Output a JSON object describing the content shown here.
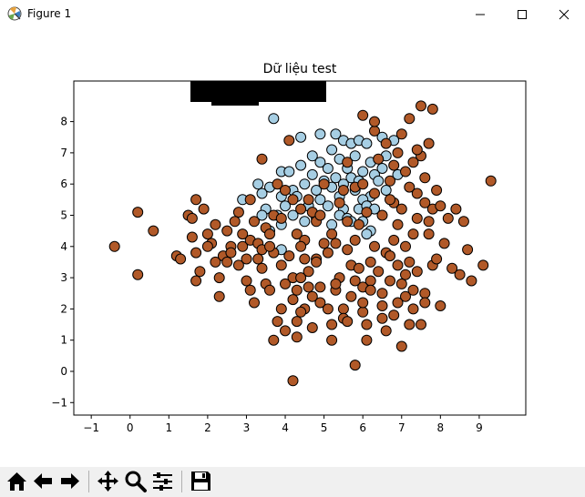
{
  "window": {
    "title": "Figure 1",
    "controls": [
      "minimize",
      "maximize",
      "close"
    ]
  },
  "toolbar": {
    "buttons": [
      "home-icon",
      "back-icon",
      "forward-icon",
      "pan-icon",
      "zoom-icon",
      "configure-subplots-icon",
      "save-icon"
    ]
  },
  "chart_data": {
    "type": "scatter",
    "title": "Dữ liệu test",
    "xlabel": "",
    "ylabel": "",
    "xlim": [
      -1.45,
      10.2
    ],
    "ylim": [
      -1.4,
      9.3
    ],
    "xticks": [
      -1,
      0,
      1,
      2,
      3,
      4,
      5,
      6,
      7,
      8,
      9
    ],
    "yticks": [
      -1,
      0,
      1,
      2,
      3,
      4,
      5,
      6,
      7,
      8
    ],
    "grid": false,
    "marker_edge": "#000000",
    "series": [
      {
        "color": "#a6cee3",
        "points": [
          [
            3.7,
            8.1
          ],
          [
            4.4,
            7.5
          ],
          [
            4.9,
            7.6
          ],
          [
            5.3,
            7.6
          ],
          [
            5.5,
            7.4
          ],
          [
            5.7,
            7.3
          ],
          [
            5.9,
            7.4
          ],
          [
            6.1,
            7.3
          ],
          [
            6.5,
            7.5
          ],
          [
            6.8,
            7.4
          ],
          [
            5.2,
            7.1
          ],
          [
            4.7,
            6.9
          ],
          [
            5.4,
            6.8
          ],
          [
            5.8,
            6.9
          ],
          [
            6.6,
            6.9
          ],
          [
            6.2,
            6.7
          ],
          [
            4.9,
            6.7
          ],
          [
            4.4,
            6.6
          ],
          [
            5.1,
            6.5
          ],
          [
            5.6,
            6.5
          ],
          [
            6.0,
            6.4
          ],
          [
            6.5,
            6.5
          ],
          [
            3.9,
            6.4
          ],
          [
            4.1,
            6.4
          ],
          [
            4.7,
            6.3
          ],
          [
            5.3,
            6.2
          ],
          [
            5.7,
            6.2
          ],
          [
            6.3,
            6.3
          ],
          [
            6.9,
            6.3
          ],
          [
            4.5,
            6.0
          ],
          [
            5.0,
            6.1
          ],
          [
            5.5,
            6.0
          ],
          [
            5.9,
            6.1
          ],
          [
            6.4,
            6.1
          ],
          [
            3.3,
            6.0
          ],
          [
            3.6,
            5.9
          ],
          [
            4.2,
            5.8
          ],
          [
            4.8,
            5.8
          ],
          [
            5.2,
            5.9
          ],
          [
            5.8,
            5.8
          ],
          [
            6.2,
            5.6
          ],
          [
            6.6,
            5.8
          ],
          [
            3.4,
            5.7
          ],
          [
            3.9,
            5.6
          ],
          [
            4.3,
            5.6
          ],
          [
            4.9,
            5.5
          ],
          [
            5.4,
            5.6
          ],
          [
            6.0,
            5.5
          ],
          [
            2.9,
            5.5
          ],
          [
            3.5,
            5.2
          ],
          [
            4.0,
            5.3
          ],
          [
            4.6,
            5.3
          ],
          [
            5.1,
            5.3
          ],
          [
            5.5,
            5.2
          ],
          [
            5.9,
            5.2
          ],
          [
            6.1,
            5.3
          ],
          [
            6.3,
            5.2
          ],
          [
            3.4,
            5.0
          ],
          [
            3.8,
            5.0
          ],
          [
            4.2,
            5.0
          ],
          [
            4.8,
            4.9
          ],
          [
            5.4,
            5.0
          ],
          [
            5.6,
            4.9
          ],
          [
            6.0,
            4.8
          ],
          [
            6.2,
            4.5
          ],
          [
            5.7,
            4.8
          ],
          [
            5.2,
            4.7
          ],
          [
            4.5,
            4.8
          ],
          [
            3.9,
            4.7
          ],
          [
            3.6,
            4.5
          ],
          [
            3.9,
            3.9
          ],
          [
            6.1,
            4.4
          ]
        ]
      },
      {
        "color": "#b15928",
        "points": [
          [
            -0.4,
            4.0
          ],
          [
            0.2,
            3.1
          ],
          [
            0.2,
            5.1
          ],
          [
            0.6,
            4.5
          ],
          [
            1.2,
            3.7
          ],
          [
            1.3,
            3.6
          ],
          [
            1.5,
            5.0
          ],
          [
            1.6,
            4.9
          ],
          [
            1.6,
            4.3
          ],
          [
            1.7,
            5.5
          ],
          [
            1.7,
            3.8
          ],
          [
            1.8,
            3.2
          ],
          [
            1.7,
            2.9
          ],
          [
            2.0,
            4.4
          ],
          [
            2.1,
            4.1
          ],
          [
            2.2,
            4.7
          ],
          [
            2.2,
            3.5
          ],
          [
            2.3,
            3.0
          ],
          [
            2.4,
            3.7
          ],
          [
            2.3,
            2.4
          ],
          [
            2.5,
            3.5
          ],
          [
            2.6,
            4.0
          ],
          [
            2.6,
            3.8
          ],
          [
            2.8,
            5.1
          ],
          [
            2.8,
            3.4
          ],
          [
            2.9,
            4.0
          ],
          [
            3.0,
            3.6
          ],
          [
            3.1,
            4.2
          ],
          [
            3.0,
            2.9
          ],
          [
            3.1,
            2.6
          ],
          [
            3.2,
            2.2
          ],
          [
            3.1,
            5.5
          ],
          [
            3.3,
            4.1
          ],
          [
            3.4,
            3.9
          ],
          [
            3.5,
            4.6
          ],
          [
            3.4,
            3.3
          ],
          [
            3.5,
            2.8
          ],
          [
            3.6,
            4.4
          ],
          [
            3.4,
            6.8
          ],
          [
            3.7,
            5.0
          ],
          [
            3.7,
            3.8
          ],
          [
            3.8,
            6.0
          ],
          [
            3.9,
            4.9
          ],
          [
            3.8,
            1.6
          ],
          [
            3.7,
            1.0
          ],
          [
            3.9,
            2.0
          ],
          [
            4.0,
            1.3
          ],
          [
            4.0,
            5.8
          ],
          [
            4.1,
            7.4
          ],
          [
            4.2,
            5.5
          ],
          [
            4.3,
            4.4
          ],
          [
            4.2,
            3.0
          ],
          [
            4.3,
            2.6
          ],
          [
            4.2,
            2.3
          ],
          [
            4.3,
            1.6
          ],
          [
            4.3,
            1.1
          ],
          [
            4.2,
            -0.3
          ],
          [
            4.4,
            5.2
          ],
          [
            4.5,
            4.2
          ],
          [
            4.5,
            3.6
          ],
          [
            4.6,
            3.2
          ],
          [
            4.6,
            2.7
          ],
          [
            4.5,
            2.0
          ],
          [
            4.7,
            1.4
          ],
          [
            4.7,
            5.1
          ],
          [
            4.8,
            4.8
          ],
          [
            4.8,
            3.6
          ],
          [
            4.9,
            2.7
          ],
          [
            4.9,
            2.2
          ],
          [
            5.0,
            4.1
          ],
          [
            5.1,
            3.8
          ],
          [
            5.2,
            1.5
          ],
          [
            5.2,
            1.0
          ],
          [
            5.3,
            2.6
          ],
          [
            5.4,
            5.4
          ],
          [
            5.4,
            3.0
          ],
          [
            5.5,
            2.0
          ],
          [
            5.5,
            1.7
          ],
          [
            5.6,
            6.7
          ],
          [
            5.6,
            4.8
          ],
          [
            5.7,
            3.4
          ],
          [
            5.7,
            2.4
          ],
          [
            5.8,
            5.9
          ],
          [
            5.8,
            0.2
          ],
          [
            5.9,
            4.7
          ],
          [
            5.9,
            3.3
          ],
          [
            6.0,
            2.7
          ],
          [
            6.0,
            1.9
          ],
          [
            6.1,
            1.5
          ],
          [
            6.1,
            1.0
          ],
          [
            6.2,
            3.5
          ],
          [
            6.2,
            2.9
          ],
          [
            6.3,
            7.7
          ],
          [
            6.3,
            4.0
          ],
          [
            6.4,
            3.2
          ],
          [
            6.5,
            2.5
          ],
          [
            6.5,
            2.1
          ],
          [
            6.6,
            3.8
          ],
          [
            6.6,
            1.3
          ],
          [
            6.7,
            6.1
          ],
          [
            6.7,
            3.7
          ],
          [
            6.8,
            5.4
          ],
          [
            6.8,
            4.2
          ],
          [
            6.8,
            1.8
          ],
          [
            6.9,
            7.0
          ],
          [
            6.9,
            3.4
          ],
          [
            7.0,
            2.8
          ],
          [
            7.0,
            0.8
          ],
          [
            7.1,
            4.0
          ],
          [
            7.1,
            2.4
          ],
          [
            7.2,
            5.9
          ],
          [
            7.2,
            3.5
          ],
          [
            7.3,
            6.7
          ],
          [
            7.3,
            2.0
          ],
          [
            7.4,
            5.7
          ],
          [
            7.4,
            3.2
          ],
          [
            7.5,
            1.5
          ],
          [
            7.5,
            8.5
          ],
          [
            7.5,
            6.9
          ],
          [
            7.6,
            5.4
          ],
          [
            7.6,
            2.5
          ],
          [
            7.7,
            7.3
          ],
          [
            7.7,
            4.8
          ],
          [
            7.8,
            3.4
          ],
          [
            7.8,
            5.2
          ],
          [
            7.9,
            3.6
          ],
          [
            8.0,
            5.3
          ],
          [
            8.0,
            2.1
          ],
          [
            8.2,
            4.9
          ],
          [
            8.3,
            3.3
          ],
          [
            8.4,
            5.2
          ],
          [
            8.5,
            3.1
          ],
          [
            8.6,
            4.8
          ],
          [
            8.7,
            3.9
          ],
          [
            8.8,
            2.9
          ],
          [
            9.1,
            3.4
          ],
          [
            9.3,
            6.1
          ],
          [
            6.0,
            8.2
          ],
          [
            6.3,
            8.0
          ],
          [
            7.2,
            8.1
          ],
          [
            7.8,
            8.4
          ],
          [
            6.6,
            7.3
          ],
          [
            7.0,
            7.6
          ],
          [
            7.4,
            7.1
          ],
          [
            6.5,
            5.0
          ],
          [
            6.9,
            4.7
          ],
          [
            7.3,
            4.4
          ],
          [
            5.0,
            6.0
          ],
          [
            5.5,
            5.8
          ],
          [
            6.1,
            5.1
          ],
          [
            4.6,
            5.5
          ],
          [
            4.9,
            5.0
          ],
          [
            5.2,
            4.4
          ],
          [
            5.6,
            3.9
          ],
          [
            4.4,
            4.0
          ],
          [
            4.1,
            3.7
          ],
          [
            3.9,
            3.4
          ],
          [
            3.6,
            4.0
          ],
          [
            3.3,
            3.6
          ],
          [
            2.9,
            4.4
          ],
          [
            2.5,
            4.5
          ],
          [
            2.0,
            4.0
          ],
          [
            1.9,
            5.2
          ],
          [
            2.7,
            4.8
          ],
          [
            3.2,
            4.8
          ],
          [
            6.4,
            6.8
          ],
          [
            6.8,
            6.6
          ],
          [
            7.1,
            6.4
          ],
          [
            7.6,
            6.2
          ],
          [
            7.9,
            5.8
          ],
          [
            6.0,
            6.0
          ],
          [
            6.3,
            5.7
          ],
          [
            6.7,
            5.5
          ],
          [
            7.0,
            5.2
          ],
          [
            7.4,
            4.9
          ],
          [
            7.7,
            4.4
          ],
          [
            8.1,
            4.1
          ],
          [
            5.8,
            4.2
          ],
          [
            5.3,
            4.1
          ],
          [
            4.8,
            3.5
          ],
          [
            4.4,
            3.0
          ],
          [
            4.0,
            2.8
          ],
          [
            3.6,
            2.6
          ],
          [
            6.9,
            2.2
          ],
          [
            7.3,
            2.6
          ],
          [
            7.6,
            2.2
          ],
          [
            7.2,
            1.5
          ],
          [
            6.5,
            1.7
          ],
          [
            6.0,
            2.2
          ],
          [
            5.6,
            1.6
          ],
          [
            5.1,
            2.0
          ],
          [
            4.7,
            2.4
          ],
          [
            4.4,
            1.9
          ],
          [
            5.3,
            2.8
          ],
          [
            5.8,
            2.9
          ],
          [
            6.2,
            2.6
          ],
          [
            6.7,
            2.9
          ],
          [
            7.1,
            3.1
          ]
        ]
      }
    ]
  }
}
